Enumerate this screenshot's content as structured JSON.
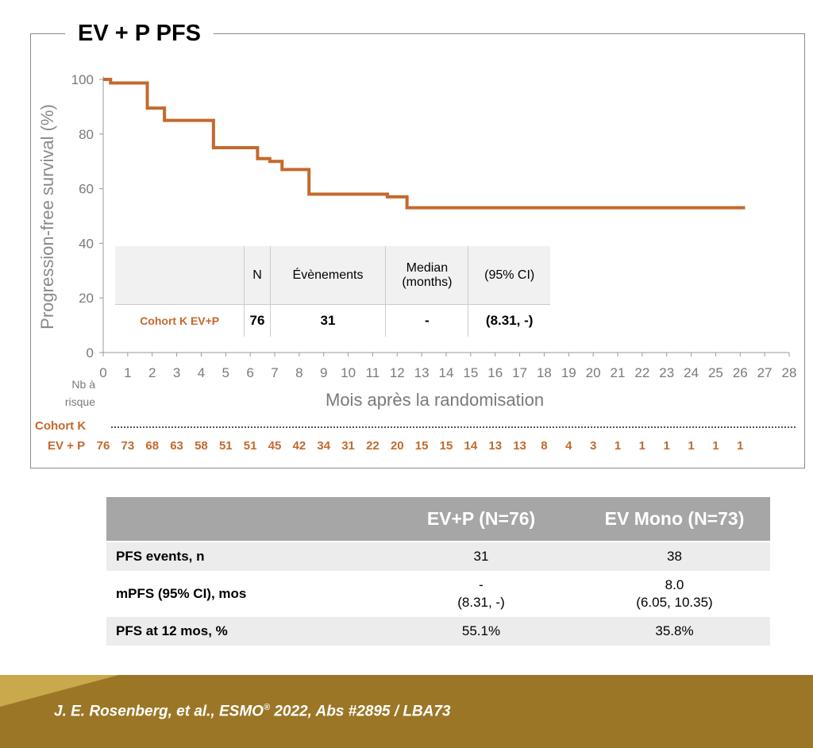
{
  "slide": {
    "title": "EV + P PFS",
    "ylabel": "Progression-free survival (%)",
    "xlabel": "Mois après la randomisation"
  },
  "chart_data": {
    "type": "line",
    "title": "EV + P PFS",
    "xlabel": "Mois après la randomisation",
    "ylabel": "Progression-free survival (%)",
    "xlim": [
      0,
      28
    ],
    "ylim": [
      0,
      100
    ],
    "x_ticks": [
      "0",
      "1",
      "2",
      "3",
      "4",
      "5",
      "6",
      "7",
      "8",
      "9",
      "10",
      "11",
      "12",
      "13",
      "14",
      "15",
      "16",
      "17",
      "18",
      "19",
      "20",
      "21",
      "22",
      "23",
      "24",
      "25",
      "26",
      "27",
      "28"
    ],
    "y_ticks": [
      "0",
      "20",
      "40",
      "60",
      "80",
      "100"
    ],
    "series": [
      {
        "name": "Cohort K EV+P",
        "step": true,
        "x": [
          0,
          0.3,
          1.8,
          2.5,
          3.2,
          4.5,
          6.3,
          6.8,
          7.3,
          7.8,
          8.4,
          11.6,
          12.4,
          26.2
        ],
        "y": [
          100,
          98.7,
          89.5,
          85,
          85,
          75,
          71,
          70,
          67,
          67,
          58,
          57,
          53,
          53
        ]
      }
    ],
    "colors": {
      "curve": "#c4692c"
    }
  },
  "risk_table": {
    "header_line1": "Nb à",
    "header_line2": "risque",
    "cohort": "Cohort K",
    "row_label": "EV + P",
    "values": [
      "76",
      "73",
      "68",
      "63",
      "58",
      "51",
      "51",
      "45",
      "42",
      "34",
      "31",
      "22",
      "20",
      "15",
      "15",
      "14",
      "13",
      "13",
      "8",
      "4",
      "3",
      "1",
      "1",
      "1",
      "1",
      "1",
      "1"
    ]
  },
  "inset_table": {
    "headers": [
      "N",
      "Évènements",
      "Median",
      "(months)",
      "(95% CI)"
    ],
    "row": {
      "label": "Cohort K EV+P",
      "n": "76",
      "events": "31",
      "median": "-",
      "ci": "(8.31, -)"
    }
  },
  "summary_table": {
    "col1": "EV+P (N=76)",
    "col2": "EV Mono (N=73)",
    "rows": [
      {
        "label": "PFS events, n",
        "a": "31",
        "b": "38"
      },
      {
        "label": "mPFS (95% CI), mos",
        "a1": "-",
        "a2": "(8.31, -)",
        "b1": "8.0",
        "b2": "(6.05, 10.35)"
      },
      {
        "label": "PFS at 12 mos, %",
        "a": "55.1%",
        "b": "35.8%"
      }
    ]
  },
  "footer": {
    "citation_pre": "J. E. Rosenberg, et al., ESMO",
    "citation_reg": "®",
    "citation_post": " 2022, Abs #2895 / LBA73",
    "colors": {
      "band": "#9b7626",
      "band_light": "#c8a94b"
    }
  }
}
